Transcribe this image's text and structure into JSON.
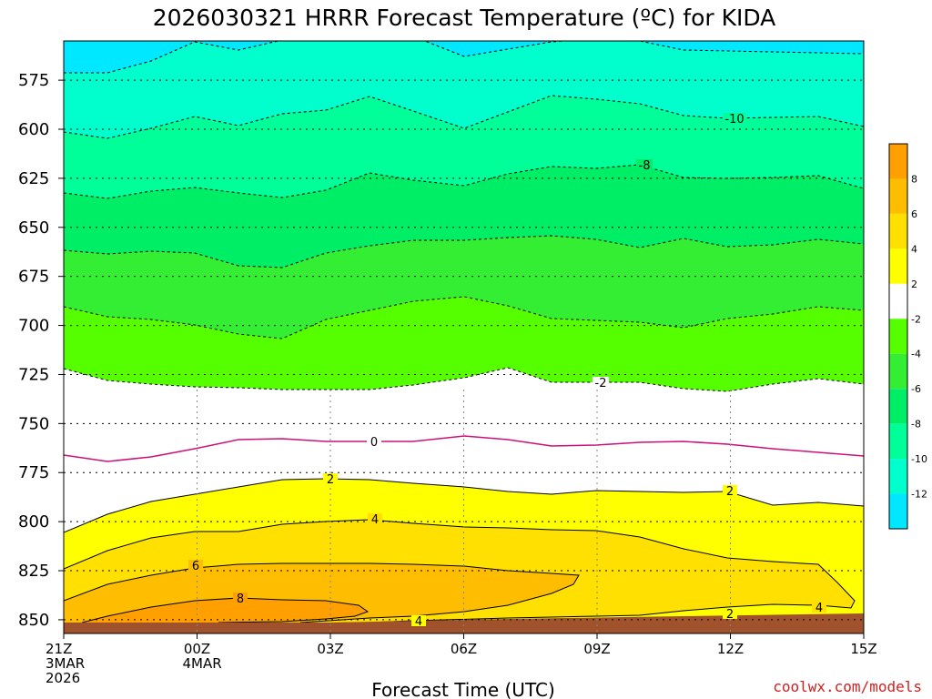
{
  "chart_data": {
    "type": "time-height contour",
    "title": "2026030321 HRRR Forecast Temperature (ºC) for KIDA",
    "xlabel": "Forecast Time (UTC)",
    "ylabel": "",
    "credit": "coolwx.com/models",
    "x_ticks": [
      {
        "hour": 0,
        "lines": [
          "21Z",
          "3MAR",
          "2026"
        ]
      },
      {
        "hour": 3,
        "lines": [
          "00Z",
          "4MAR"
        ]
      },
      {
        "hour": 6,
        "lines": [
          "03Z"
        ]
      },
      {
        "hour": 9,
        "lines": [
          "06Z"
        ]
      },
      {
        "hour": 12,
        "lines": [
          "09Z"
        ]
      },
      {
        "hour": 15,
        "lines": [
          "12Z"
        ]
      },
      {
        "hour": 18,
        "lines": [
          "15Z"
        ]
      }
    ],
    "xlim_hours": [
      0,
      18
    ],
    "y_ticks": [
      575,
      600,
      625,
      650,
      675,
      700,
      725,
      750,
      775,
      800,
      825,
      850
    ],
    "ylim_hPa": [
      555,
      857
    ],
    "colorbar": {
      "tick_labels": [
        "8",
        "6",
        "4",
        "2",
        "-2",
        "-4",
        "-6",
        "-8",
        "-10",
        "-12"
      ],
      "bands": [
        {
          "range": [
            8,
            10
          ],
          "color": "#ff9f00"
        },
        {
          "range": [
            6,
            8
          ],
          "color": "#ffbd00"
        },
        {
          "range": [
            4,
            6
          ],
          "color": "#ffe000"
        },
        {
          "range": [
            2,
            4
          ],
          "color": "#ffff00"
        },
        {
          "range": [
            -2,
            2
          ],
          "color": "#ffffff"
        },
        {
          "range": [
            -4,
            -2
          ],
          "color": "#55ff00"
        },
        {
          "range": [
            -6,
            -4
          ],
          "color": "#33ee33"
        },
        {
          "range": [
            -8,
            -6
          ],
          "color": "#00ee66"
        },
        {
          "range": [
            -10,
            -8
          ],
          "color": "#00ff99"
        },
        {
          "range": [
            -12,
            -10
          ],
          "color": "#00ffcc"
        },
        {
          "range": [
            -14,
            -12
          ],
          "color": "#00e8ff"
        }
      ]
    },
    "contour_labels": [
      "-10",
      "-8",
      "-2",
      "0",
      "2",
      "2",
      "4",
      "6",
      "8",
      "4",
      "2",
      "4"
    ],
    "ground_color": "#a0522d",
    "zero_line_color": "#cc1177"
  }
}
